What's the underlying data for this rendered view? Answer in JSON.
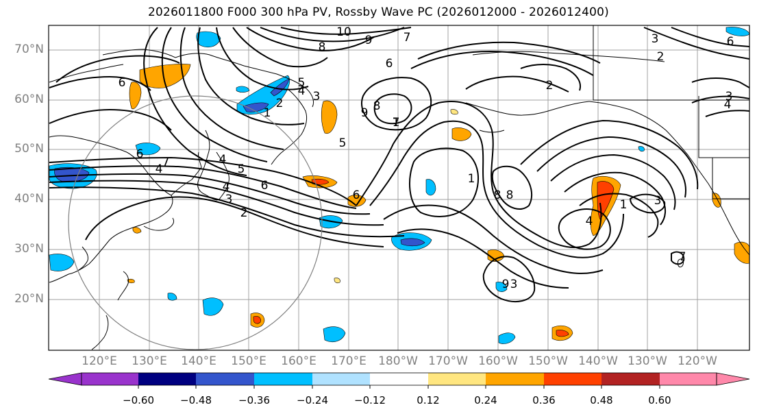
{
  "title": "2026011800 F000 300 hPa PV, Rossby Wave PC (2026012000 - 2026012400)",
  "lat_labels": [
    "70°N",
    "60°N",
    "50°N",
    "40°N",
    "30°N",
    "20°N"
  ],
  "lon_labels": [
    "120°E",
    "130°E",
    "140°E",
    "150°E",
    "160°E",
    "170°E",
    "180°W",
    "170°W",
    "160°W",
    "150°W",
    "140°W",
    "130°W",
    "120°W"
  ],
  "colorbar": {
    "colors": [
      "#9933cc",
      "#000080",
      "#3355cc",
      "#00bfff",
      "#b0e2ff",
      "#ffffff",
      "#ffe680",
      "#ffa500",
      "#ff4000",
      "#b22222",
      "#ff88aa"
    ],
    "tick_labels": [
      "−0.60",
      "−0.48",
      "−0.36",
      "−0.24",
      "−0.12",
      "0.12",
      "0.24",
      "0.36",
      "0.48",
      "0.60"
    ]
  },
  "contour_labels": [
    "10",
    "9",
    "8",
    "7",
    "6",
    "6",
    "5",
    "4",
    "3",
    "2",
    "1",
    "6",
    "9",
    "8",
    "7",
    "2",
    "3",
    "4",
    "4",
    "7",
    "4",
    "6",
    "5",
    "4",
    "3",
    "2",
    "1",
    "8",
    "8",
    "9",
    "3",
    "6",
    "5",
    "1",
    "3",
    "7",
    "6",
    "4",
    "3",
    "2",
    "1"
  ],
  "styles": {
    "border_color": "#000000",
    "grid_color": "#a0a0a0",
    "contour_color": "#000000",
    "circle_color": "#808080"
  }
}
